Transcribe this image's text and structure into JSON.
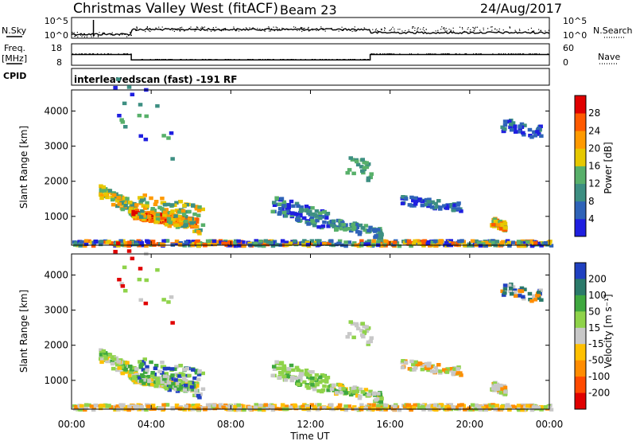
{
  "header": {
    "title": "Christmas Valley West (fitACF)",
    "beam": "Beam 23",
    "date": "24/Aug/2017"
  },
  "left_labels": {
    "nsky": "N.Sky",
    "freq": "Freq.",
    "freq_unit": "[MHz]",
    "cpid": "CPID"
  },
  "right_labels": {
    "nsearch": "N.Search",
    "nave": "Nave"
  },
  "cpid_text": "interleavedscan (fast) -191 RF",
  "colors": {
    "power": [
      "#1f1fe0",
      "#2f63b8",
      "#3d8f82",
      "#58b06a",
      "#e6c800",
      "#ff9a00",
      "#ff5a00",
      "#e00000"
    ],
    "velocity": [
      "#e00000",
      "#ff4a00",
      "#ff8c00",
      "#ffc000",
      "#c8c8c8",
      "#8fd34a",
      "#3fa83f",
      "#2b7a6a",
      "#2040c0"
    ]
  },
  "chart_data": [
    {
      "type": "line",
      "panel": "noise",
      "left_ticks": [
        "10^5",
        "10^0"
      ],
      "right_ticks": [
        "10^5",
        "10^0"
      ]
    },
    {
      "type": "line",
      "panel": "frequency-nave",
      "left_ticks": [
        "18",
        "8"
      ],
      "right_ticks": [
        "60",
        "0"
      ],
      "frequency_steps": [
        {
          "from": "00:00",
          "to": "03:00",
          "value": 13
        },
        {
          "from": "03:00",
          "to": "15:00",
          "value": 10.5
        },
        {
          "from": "15:00",
          "to": "24:00",
          "value": 13
        }
      ]
    },
    {
      "type": "heatmap",
      "panel": "power",
      "xlabel": "",
      "ylabel": "Slant Range [km]",
      "y_ticks": [
        "1000",
        "2000",
        "3000",
        "4000"
      ],
      "ylim": [
        180,
        4600
      ],
      "colorbar_label": "Power [dB]",
      "colorbar_ticks": [
        "4",
        "8",
        "12",
        "16",
        "20",
        "24",
        "28"
      ]
    },
    {
      "type": "heatmap",
      "panel": "velocity",
      "xlabel": "Time UT",
      "ylabel": "Slant Range [km]",
      "x_ticks": [
        "00:00",
        "04:00",
        "08:00",
        "12:00",
        "16:00",
        "20:00",
        "00:00"
      ],
      "y_ticks": [
        "1000",
        "2000",
        "3000",
        "4000"
      ],
      "ylim": [
        180,
        4600
      ],
      "colorbar_label": "Velocity [m s⁻¹]",
      "colorbar_ticks": [
        "200",
        "100",
        "50",
        "15",
        "-15",
        "-50",
        "-100",
        "-200"
      ]
    }
  ]
}
